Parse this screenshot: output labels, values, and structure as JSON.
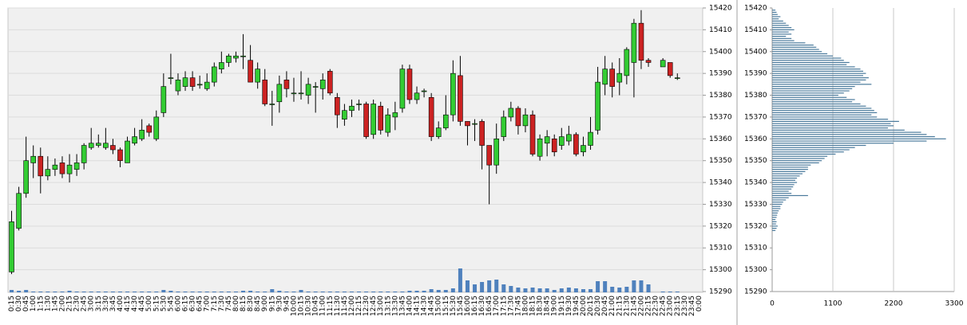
{
  "chart_data": [
    {
      "type": "candlestick",
      "categories": [
        "0:15",
        "0:30",
        "0:45",
        "1:00",
        "1:15",
        "1:30",
        "1:45",
        "2:00",
        "2:15",
        "2:30",
        "2:45",
        "3:00",
        "3:15",
        "3:30",
        "3:45",
        "4:00",
        "4:15",
        "4:30",
        "4:45",
        "5:00",
        "5:15",
        "5:30",
        "5:45",
        "6:00",
        "6:15",
        "6:30",
        "6:45",
        "7:00",
        "7:15",
        "7:30",
        "7:45",
        "8:00",
        "8:15",
        "8:30",
        "8:45",
        "9:00",
        "9:15",
        "9:30",
        "9:45",
        "10:00",
        "10:15",
        "10:30",
        "10:45",
        "11:00",
        "11:15",
        "11:30",
        "11:45",
        "12:00",
        "12:15",
        "12:30",
        "12:45",
        "13:00",
        "13:15",
        "13:30",
        "13:45",
        "14:00",
        "14:15",
        "14:30",
        "14:45",
        "15:00",
        "15:15",
        "15:30",
        "15:45",
        "16:00",
        "16:15",
        "16:30",
        "16:45",
        "17:00",
        "17:15",
        "17:30",
        "17:45",
        "18:00",
        "18:15",
        "18:30",
        "18:45",
        "19:00",
        "19:15",
        "19:30",
        "19:45",
        "20:00",
        "20:15",
        "20:30",
        "20:45",
        "21:00",
        "21:15",
        "21:30",
        "21:45",
        "22:00",
        "22:15",
        "22:30",
        "22:45",
        "23:00",
        "23:15",
        "23:30",
        "23:45",
        "0:00"
      ],
      "open": [
        15299,
        15319,
        15335,
        15349,
        15352,
        15343,
        15346,
        15349,
        15344,
        15346,
        15349,
        15356,
        15357,
        15356,
        15357,
        15355,
        15349,
        15358,
        15360,
        15366,
        15360,
        15372,
        15388,
        15382,
        15384,
        15388,
        15385,
        15383,
        15386,
        15392,
        15395,
        15397,
        15398,
        15396,
        15386,
        15387,
        15376,
        15377,
        15387,
        15381,
        15381,
        15380,
        15384,
        15383,
        15391,
        15379,
        15369,
        15373,
        15376,
        15376,
        15362,
        15375,
        15363,
        15370,
        15374,
        15392,
        15378,
        15382,
        15379,
        15361,
        15365,
        15371,
        15389,
        15368,
        15367,
        15368,
        15357,
        15348,
        15361,
        15370,
        15374,
        15366,
        15371,
        15352,
        15358,
        15360,
        15357,
        15359,
        15362,
        15354,
        15357,
        15364,
        15385,
        15392,
        15386,
        15389,
        15395,
        15413,
        15396,
        null,
        15393,
        15395,
        15388,
        null,
        null,
        null
      ],
      "high": [
        15327,
        15338,
        15361,
        15357,
        15356,
        15352,
        15351,
        15352,
        15353,
        15353,
        15358,
        15365,
        15362,
        15365,
        15360,
        15356,
        15361,
        15365,
        15369,
        15367,
        15373,
        15390,
        15399,
        15390,
        15391,
        15391,
        15389,
        15390,
        15395,
        15400,
        15399,
        15400,
        15408,
        15403,
        15395,
        15392,
        15382,
        15389,
        15391,
        15388,
        15391,
        15388,
        15386,
        15390,
        15392,
        15381,
        15376,
        15378,
        15378,
        15377,
        15378,
        15377,
        15374,
        15377,
        15394,
        15394,
        15384,
        15383,
        15381,
        15368,
        15380,
        15396,
        15398,
        15368,
        15369,
        15369,
        15357,
        15367,
        15373,
        15377,
        15375,
        15374,
        15373,
        15362,
        15364,
        15362,
        15365,
        15366,
        15363,
        15361,
        15370,
        15393,
        15398,
        15395,
        15397,
        15402,
        15415,
        15419,
        15397,
        null,
        15397,
        15395,
        15390,
        null,
        null,
        null
      ],
      "low": [
        15298,
        15318,
        15333,
        15342,
        15335,
        15341,
        15343,
        15342,
        15340,
        15343,
        15346,
        15355,
        15356,
        15355,
        15353,
        15347,
        15349,
        15357,
        15359,
        15361,
        15359,
        15370,
        15385,
        15380,
        15382,
        15382,
        15383,
        15382,
        15384,
        15390,
        15393,
        15395,
        15392,
        15386,
        15383,
        15375,
        15366,
        15372,
        15379,
        15377,
        15378,
        15376,
        15372,
        15378,
        15380,
        15365,
        15366,
        15370,
        15373,
        15360,
        15360,
        15362,
        15361,
        15364,
        15372,
        15376,
        15376,
        15379,
        15359,
        15360,
        15364,
        15368,
        15366,
        15357,
        15359,
        15346,
        15330,
        15344,
        15359,
        15368,
        15362,
        15363,
        15352,
        15350,
        15352,
        15352,
        15355,
        15357,
        15352,
        15352,
        15355,
        15362,
        15380,
        15379,
        15380,
        15385,
        15379,
        15392,
        15393,
        null,
        15393,
        15388,
        15387,
        null,
        null,
        null
      ],
      "close": [
        15322,
        15335,
        15350,
        15352,
        15343,
        15346,
        15348,
        15344,
        15348,
        15349,
        15357,
        15358,
        15358,
        15358,
        15355,
        15350,
        15359,
        15361,
        15364,
        15363,
        15370,
        15384,
        15388,
        15387,
        15388,
        15384,
        15385,
        15386,
        15393,
        15395,
        15398,
        15398,
        15398,
        15386,
        15392,
        15376,
        15376,
        15385,
        15383,
        15381,
        15381,
        15385,
        15384,
        15387,
        15381,
        15371,
        15373,
        15375,
        15376,
        15361,
        15376,
        15364,
        15371,
        15372,
        15392,
        15378,
        15381,
        15382,
        15361,
        15365,
        15371,
        15390,
        15368,
        15366,
        15367,
        15357,
        15348,
        15360,
        15370,
        15374,
        15366,
        15371,
        15353,
        15360,
        15361,
        15354,
        15361,
        15362,
        15353,
        15357,
        15363,
        15386,
        15392,
        15384,
        15390,
        15401,
        15413,
        15396,
        15395,
        null,
        15396,
        15389,
        15388,
        null,
        null,
        null
      ],
      "volume": [
        3,
        2,
        3,
        1,
        1,
        1,
        1,
        1,
        2,
        1,
        1,
        1,
        1,
        1,
        1,
        1,
        1,
        1,
        1,
        1,
        1,
        3,
        2,
        1,
        1,
        1,
        1,
        1,
        1,
        1,
        1,
        1,
        2,
        2,
        1,
        1,
        4,
        2,
        1,
        1,
        3,
        1,
        1,
        1,
        1,
        1,
        1,
        1,
        1,
        1,
        1,
        1,
        1,
        1,
        1,
        2,
        2,
        2,
        4,
        3,
        3,
        5,
        30,
        15,
        10,
        13,
        15,
        16,
        10,
        8,
        6,
        5,
        6,
        5,
        5,
        3,
        5,
        6,
        5,
        4,
        4,
        14,
        14,
        7,
        6,
        7,
        15,
        15,
        10,
        null,
        1,
        1,
        1,
        null,
        null,
        null
      ],
      "up_color": "#33cc33",
      "down_color": "#cc2222",
      "volume_color": "#4f81bd",
      "ylim": [
        15290,
        15420
      ],
      "yticks": [
        15290,
        15300,
        15310,
        15320,
        15330,
        15340,
        15350,
        15360,
        15370,
        15380,
        15390,
        15400,
        15410,
        15420
      ],
      "grid": true
    },
    {
      "type": "bar",
      "orientation": "horizontal",
      "y": [
        15419,
        15418,
        15417,
        15416,
        15415,
        15414,
        15413,
        15412,
        15411,
        15410,
        15409,
        15408,
        15407,
        15406,
        15405,
        15404,
        15403,
        15402,
        15401,
        15400,
        15399,
        15398,
        15397,
        15396,
        15395,
        15394,
        15393,
        15392,
        15391,
        15390,
        15389,
        15388,
        15387,
        15386,
        15385,
        15384,
        15383,
        15382,
        15381,
        15380,
        15379,
        15378,
        15377,
        15376,
        15375,
        15374,
        15373,
        15372,
        15371,
        15370,
        15369,
        15368,
        15367,
        15366,
        15365,
        15364,
        15363,
        15362,
        15361,
        15360,
        15359,
        15358,
        15357,
        15356,
        15355,
        15354,
        15353,
        15352,
        15351,
        15350,
        15349,
        15348,
        15347,
        15346,
        15345,
        15344,
        15343,
        15342,
        15341,
        15340,
        15339,
        15338,
        15337,
        15336,
        15335,
        15334,
        15333,
        15332,
        15331,
        15330,
        15329,
        15328,
        15327,
        15326,
        15325,
        15324,
        15323,
        15322,
        15321,
        15320,
        15319,
        15318
      ],
      "values": [
        60,
        80,
        100,
        150,
        120,
        200,
        250,
        300,
        350,
        400,
        300,
        350,
        250,
        350,
        400,
        600,
        750,
        800,
        850,
        900,
        1000,
        1100,
        1250,
        1300,
        1400,
        1350,
        1500,
        1600,
        1650,
        1700,
        1650,
        1750,
        1700,
        1600,
        1800,
        1500,
        1450,
        1400,
        1300,
        1200,
        1350,
        1500,
        1450,
        1600,
        1700,
        1800,
        1850,
        1900,
        1800,
        1900,
        2100,
        2300,
        2150,
        2200,
        2100,
        2400,
        2700,
        2800,
        2950,
        3150,
        2800,
        2200,
        1700,
        1500,
        1400,
        1300,
        1150,
        1000,
        950,
        900,
        850,
        700,
        650,
        650,
        600,
        550,
        500,
        450,
        420,
        450,
        400,
        380,
        350,
        300,
        350,
        650,
        300,
        250,
        200,
        180,
        150,
        150,
        120,
        100,
        90,
        80,
        60,
        80,
        70,
        100,
        80,
        60
      ],
      "color": "#4a7a9c",
      "xlim": [
        0,
        3300
      ],
      "xticks": [
        0,
        1100,
        2200,
        3300
      ],
      "ylim": [
        15290,
        15420
      ],
      "yticks": [
        15290,
        15300,
        15310,
        15320,
        15330,
        15340,
        15350,
        15360,
        15370,
        15380,
        15390,
        15400,
        15410,
        15420
      ],
      "grid": true
    }
  ]
}
